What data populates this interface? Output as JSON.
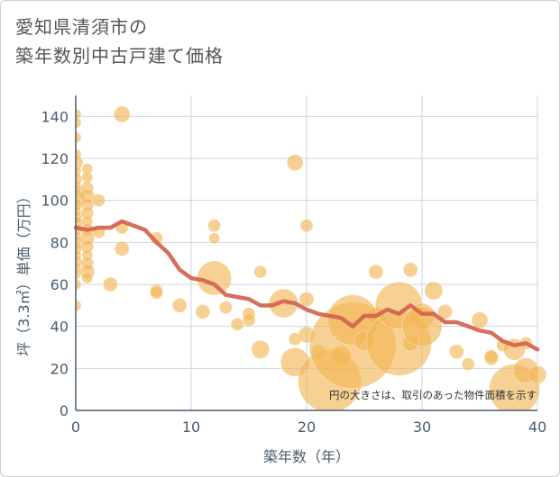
{
  "title": {
    "line1": "愛知県清須市の",
    "line2": "築年数別中古戸建て価格"
  },
  "note": "円の大きさは、取引のあった物件面積を示す",
  "colors": {
    "bubble": "#f2b552",
    "line": "#d2634e",
    "grid": "#c9d6e2",
    "axis": "#4a5c6e"
  },
  "chart_data": {
    "type": "scatter",
    "xlabel": "築年数（年）",
    "ylabel": "坪（3.3㎡）単価（万円）",
    "xlim": [
      0,
      40
    ],
    "ylim": [
      0,
      150
    ],
    "xticks": [
      "0",
      "10",
      "20",
      "30",
      "40"
    ],
    "yticks": [
      "0",
      "20",
      "40",
      "60",
      "80",
      "100",
      "120",
      "140"
    ],
    "grid": true,
    "scatter_points": [
      {
        "x": 0,
        "y": 141,
        "s": 6
      },
      {
        "x": 0,
        "y": 137,
        "s": 6
      },
      {
        "x": 0,
        "y": 130,
        "s": 6
      },
      {
        "x": 0,
        "y": 122,
        "s": 6
      },
      {
        "x": 0,
        "y": 118,
        "s": 8
      },
      {
        "x": 0,
        "y": 114,
        "s": 6
      },
      {
        "x": 0,
        "y": 110,
        "s": 7
      },
      {
        "x": 0,
        "y": 107,
        "s": 6
      },
      {
        "x": 0,
        "y": 104,
        "s": 8
      },
      {
        "x": 0,
        "y": 101,
        "s": 10
      },
      {
        "x": 0,
        "y": 98,
        "s": 7
      },
      {
        "x": 0,
        "y": 95,
        "s": 6
      },
      {
        "x": 0,
        "y": 92,
        "s": 7
      },
      {
        "x": 0,
        "y": 89,
        "s": 8
      },
      {
        "x": 0,
        "y": 86,
        "s": 7
      },
      {
        "x": 0,
        "y": 83,
        "s": 6
      },
      {
        "x": 0,
        "y": 80,
        "s": 8
      },
      {
        "x": 0,
        "y": 77,
        "s": 7
      },
      {
        "x": 0,
        "y": 74,
        "s": 6
      },
      {
        "x": 0,
        "y": 71,
        "s": 7
      },
      {
        "x": 0,
        "y": 68,
        "s": 6
      },
      {
        "x": 0,
        "y": 65,
        "s": 6
      },
      {
        "x": 0,
        "y": 60,
        "s": 6
      },
      {
        "x": 0,
        "y": 50,
        "s": 6
      },
      {
        "x": 1,
        "y": 115,
        "s": 6
      },
      {
        "x": 1,
        "y": 111,
        "s": 6
      },
      {
        "x": 1,
        "y": 106,
        "s": 7
      },
      {
        "x": 1,
        "y": 102,
        "s": 8
      },
      {
        "x": 1,
        "y": 98,
        "s": 7
      },
      {
        "x": 1,
        "y": 94,
        "s": 7
      },
      {
        "x": 1,
        "y": 90,
        "s": 6
      },
      {
        "x": 1,
        "y": 86,
        "s": 7
      },
      {
        "x": 1,
        "y": 82,
        "s": 8
      },
      {
        "x": 1,
        "y": 78,
        "s": 7
      },
      {
        "x": 1,
        "y": 74,
        "s": 6
      },
      {
        "x": 1,
        "y": 70,
        "s": 7
      },
      {
        "x": 1,
        "y": 66,
        "s": 8
      },
      {
        "x": 1,
        "y": 63,
        "s": 6
      },
      {
        "x": 2,
        "y": 100,
        "s": 7
      },
      {
        "x": 2,
        "y": 85,
        "s": 7
      },
      {
        "x": 3,
        "y": 60,
        "s": 8
      },
      {
        "x": 4,
        "y": 141,
        "s": 9
      },
      {
        "x": 4,
        "y": 87,
        "s": 7
      },
      {
        "x": 4,
        "y": 77,
        "s": 8
      },
      {
        "x": 7,
        "y": 82,
        "s": 7
      },
      {
        "x": 7,
        "y": 57,
        "s": 7
      },
      {
        "x": 7,
        "y": 56,
        "s": 7
      },
      {
        "x": 9,
        "y": 50,
        "s": 8
      },
      {
        "x": 11,
        "y": 47,
        "s": 8
      },
      {
        "x": 12,
        "y": 88,
        "s": 7
      },
      {
        "x": 12,
        "y": 82,
        "s": 6
      },
      {
        "x": 12,
        "y": 63,
        "s": 19
      },
      {
        "x": 13,
        "y": 49,
        "s": 7
      },
      {
        "x": 14,
        "y": 41,
        "s": 7
      },
      {
        "x": 15,
        "y": 46,
        "s": 7
      },
      {
        "x": 15,
        "y": 43,
        "s": 7
      },
      {
        "x": 16,
        "y": 66,
        "s": 7
      },
      {
        "x": 16,
        "y": 29,
        "s": 10
      },
      {
        "x": 18,
        "y": 51,
        "s": 16
      },
      {
        "x": 19,
        "y": 118,
        "s": 9
      },
      {
        "x": 19,
        "y": 34,
        "s": 7
      },
      {
        "x": 19,
        "y": 23,
        "s": 16
      },
      {
        "x": 20,
        "y": 88,
        "s": 7
      },
      {
        "x": 20,
        "y": 53,
        "s": 8
      },
      {
        "x": 20,
        "y": 36,
        "s": 9
      },
      {
        "x": 21,
        "y": 28,
        "s": 8
      },
      {
        "x": 22,
        "y": 14,
        "s": 35
      },
      {
        "x": 23,
        "y": 26,
        "s": 11
      },
      {
        "x": 24,
        "y": 31,
        "s": 48
      },
      {
        "x": 24,
        "y": 43,
        "s": 28
      },
      {
        "x": 25,
        "y": 33,
        "s": 11
      },
      {
        "x": 26,
        "y": 45,
        "s": 10
      },
      {
        "x": 26,
        "y": 66,
        "s": 8
      },
      {
        "x": 28,
        "y": 32,
        "s": 36
      },
      {
        "x": 28,
        "y": 50,
        "s": 26
      },
      {
        "x": 29,
        "y": 67,
        "s": 8
      },
      {
        "x": 29,
        "y": 32,
        "s": 9
      },
      {
        "x": 30,
        "y": 45,
        "s": 14
      },
      {
        "x": 30,
        "y": 40,
        "s": 22
      },
      {
        "x": 31,
        "y": 57,
        "s": 10
      },
      {
        "x": 32,
        "y": 47,
        "s": 8
      },
      {
        "x": 33,
        "y": 28,
        "s": 8
      },
      {
        "x": 34,
        "y": 22,
        "s": 7
      },
      {
        "x": 35,
        "y": 43,
        "s": 9
      },
      {
        "x": 36,
        "y": 26,
        "s": 7
      },
      {
        "x": 36,
        "y": 25,
        "s": 8
      },
      {
        "x": 37,
        "y": 31,
        "s": 7
      },
      {
        "x": 38,
        "y": 29,
        "s": 12
      },
      {
        "x": 38,
        "y": 10,
        "s": 28
      },
      {
        "x": 39,
        "y": 32,
        "s": 7
      },
      {
        "x": 39,
        "y": 19,
        "s": 14
      },
      {
        "x": 40,
        "y": 17,
        "s": 10
      }
    ],
    "trend_line": {
      "x": [
        0,
        1,
        2,
        3,
        4,
        5,
        6,
        7,
        8,
        9,
        10,
        11,
        12,
        13,
        14,
        15,
        16,
        17,
        18,
        19,
        20,
        21,
        22,
        23,
        24,
        25,
        26,
        27,
        28,
        29,
        30,
        31,
        32,
        33,
        34,
        35,
        36,
        37,
        38,
        39,
        40
      ],
      "y": [
        87,
        86,
        87,
        87,
        90,
        88,
        86,
        80,
        75,
        67,
        63,
        62,
        60,
        55,
        54,
        53,
        50,
        50,
        52,
        51,
        48,
        46,
        45,
        44,
        40,
        45,
        45,
        48,
        46,
        50,
        46,
        46,
        42,
        42,
        40,
        38,
        37,
        33,
        31,
        32,
        29
      ]
    }
  }
}
